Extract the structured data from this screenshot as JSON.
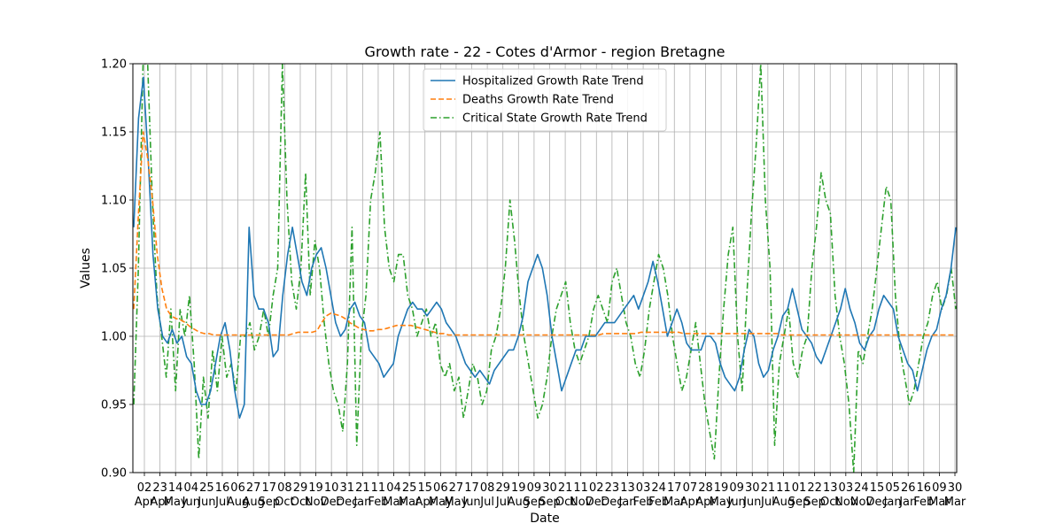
{
  "chart_data": {
    "type": "line",
    "title": "Growth rate - 22 - Cotes d'Armor - region Bretagne",
    "xlabel": "Date",
    "ylabel": "Values",
    "ylim": [
      0.9,
      1.2
    ],
    "yticks": [
      "0.90",
      "0.95",
      "1.00",
      "1.05",
      "1.10",
      "1.15",
      "1.20"
    ],
    "grid": true,
    "legend_position": "upper center",
    "xtick_labels": [
      {
        "day": "02",
        "month": "Apr"
      },
      {
        "day": "23",
        "month": "Apr"
      },
      {
        "day": "14",
        "month": "May"
      },
      {
        "day": "04",
        "month": "Jun"
      },
      {
        "day": "25",
        "month": "Jun"
      },
      {
        "day": "16",
        "month": "Jul"
      },
      {
        "day": "06",
        "month": "Aug"
      },
      {
        "day": "27",
        "month": "Aug"
      },
      {
        "day": "17",
        "month": "Sep"
      },
      {
        "day": "08",
        "month": "Oct"
      },
      {
        "day": "29",
        "month": "Oct"
      },
      {
        "day": "19",
        "month": "Nov"
      },
      {
        "day": "10",
        "month": "Dec"
      },
      {
        "day": "31",
        "month": "Dec"
      },
      {
        "day": "21",
        "month": "Jan"
      },
      {
        "day": "11",
        "month": "Feb"
      },
      {
        "day": "04",
        "month": "Mar"
      },
      {
        "day": "25",
        "month": "Mar"
      },
      {
        "day": "15",
        "month": "Apr"
      },
      {
        "day": "06",
        "month": "May"
      },
      {
        "day": "27",
        "month": "May"
      },
      {
        "day": "17",
        "month": "Jun"
      },
      {
        "day": "08",
        "month": "Jul"
      },
      {
        "day": "29",
        "month": "Jul"
      },
      {
        "day": "19",
        "month": "Aug"
      },
      {
        "day": "09",
        "month": "Sep"
      },
      {
        "day": "30",
        "month": "Sep"
      },
      {
        "day": "21",
        "month": "Oct"
      },
      {
        "day": "11",
        "month": "Nov"
      },
      {
        "day": "02",
        "month": "Dec"
      },
      {
        "day": "23",
        "month": "Dec"
      },
      {
        "day": "13",
        "month": "Jan"
      },
      {
        "day": "03",
        "month": "Feb"
      },
      {
        "day": "24",
        "month": "Feb"
      },
      {
        "day": "17",
        "month": "Mar"
      },
      {
        "day": "07",
        "month": "Apr"
      },
      {
        "day": "28",
        "month": "Apr"
      },
      {
        "day": "19",
        "month": "May"
      },
      {
        "day": "09",
        "month": "Jun"
      },
      {
        "day": "30",
        "month": "Jun"
      },
      {
        "day": "21",
        "month": "Jul"
      },
      {
        "day": "11",
        "month": "Aug"
      },
      {
        "day": "01",
        "month": "Sep"
      },
      {
        "day": "22",
        "month": "Sep"
      },
      {
        "day": "13",
        "month": "Oct"
      },
      {
        "day": "03",
        "month": "Nov"
      },
      {
        "day": "24",
        "month": "Nov"
      },
      {
        "day": "15",
        "month": "Dec"
      },
      {
        "day": "05",
        "month": "Jan"
      },
      {
        "day": "26",
        "month": "Jan"
      },
      {
        "day": "16",
        "month": "Feb"
      },
      {
        "day": "09",
        "month": "Mar"
      },
      {
        "day": "30",
        "month": "Mar"
      }
    ],
    "series": [
      {
        "name": "Hospitalized Growth Rate Trend",
        "color": "#1f77b4",
        "style": "solid",
        "values": [
          1.08,
          1.16,
          1.19,
          1.13,
          1.06,
          1.02,
          1.0,
          0.995,
          1.005,
          0.995,
          1.0,
          0.985,
          0.98,
          0.96,
          0.95,
          0.95,
          0.96,
          0.98,
          1.0,
          1.01,
          0.99,
          0.96,
          0.94,
          0.95,
          1.08,
          1.03,
          1.02,
          1.02,
          1.01,
          0.985,
          0.99,
          1.03,
          1.06,
          1.08,
          1.06,
          1.04,
          1.03,
          1.05,
          1.06,
          1.065,
          1.05,
          1.03,
          1.01,
          1.0,
          1.005,
          1.02,
          1.025,
          1.015,
          1.01,
          0.99,
          0.985,
          0.98,
          0.97,
          0.975,
          0.98,
          1.0,
          1.01,
          1.02,
          1.025,
          1.02,
          1.02,
          1.015,
          1.02,
          1.025,
          1.02,
          1.01,
          1.005,
          1.0,
          0.99,
          0.98,
          0.975,
          0.97,
          0.975,
          0.97,
          0.965,
          0.975,
          0.98,
          0.985,
          0.99,
          0.99,
          1.0,
          1.015,
          1.04,
          1.05,
          1.06,
          1.05,
          1.03,
          1.0,
          0.98,
          0.96,
          0.97,
          0.98,
          0.99,
          0.99,
          1.0,
          1.0,
          1.0,
          1.005,
          1.01,
          1.01,
          1.01,
          1.015,
          1.02,
          1.025,
          1.03,
          1.02,
          1.03,
          1.04,
          1.055,
          1.04,
          1.02,
          1.0,
          1.01,
          1.02,
          1.01,
          0.995,
          0.99,
          0.99,
          0.99,
          1.0,
          1.0,
          0.995,
          0.98,
          0.97,
          0.965,
          0.96,
          0.97,
          0.99,
          1.005,
          1.0,
          0.98,
          0.97,
          0.975,
          0.99,
          1.0,
          1.015,
          1.02,
          1.035,
          1.02,
          1.005,
          1.0,
          0.995,
          0.985,
          0.98,
          0.99,
          1.0,
          1.01,
          1.02,
          1.035,
          1.02,
          1.01,
          0.995,
          0.99,
          1.0,
          1.005,
          1.02,
          1.03,
          1.025,
          1.02,
          1.0,
          0.99,
          0.98,
          0.975,
          0.96,
          0.975,
          0.99,
          1.0,
          1.005,
          1.02,
          1.03,
          1.05,
          1.08
        ]
      },
      {
        "name": "Deaths Growth Rate Trend",
        "color": "#ff7f0e",
        "style": "dashed",
        "values": [
          1.02,
          1.09,
          1.15,
          1.13,
          1.1,
          1.06,
          1.035,
          1.02,
          1.015,
          1.013,
          1.012,
          1.01,
          1.007,
          1.005,
          1.003,
          1.002,
          1.002,
          1.001,
          1.001,
          1.001,
          1.001,
          1.001,
          1.001,
          1.001,
          1.001,
          1.001,
          1.001,
          1.001,
          1.001,
          1.001,
          1.001,
          1.001,
          1.001,
          1.001,
          1.002,
          1.003,
          1.003,
          1.003,
          1.003,
          1.004,
          1.01,
          1.015,
          1.017,
          1.016,
          1.015,
          1.013,
          1.01,
          1.008,
          1.006,
          1.005,
          1.004,
          1.004,
          1.005,
          1.005,
          1.006,
          1.007,
          1.008,
          1.008,
          1.008,
          1.008,
          1.007,
          1.006,
          1.005,
          1.004,
          1.003,
          1.002,
          1.002,
          1.001,
          1.001,
          1.001,
          1.001,
          1.001,
          1.001,
          1.001,
          1.001,
          1.001,
          1.001,
          1.001,
          1.001,
          1.001,
          1.001,
          1.001,
          1.001,
          1.001,
          1.001,
          1.001,
          1.001,
          1.001,
          1.001,
          1.001,
          1.001,
          1.001,
          1.001,
          1.001,
          1.001,
          1.001,
          1.001,
          1.001,
          1.001,
          1.001,
          1.002,
          1.002,
          1.002,
          1.002,
          1.002,
          1.002,
          1.002,
          1.002,
          1.003,
          1.003,
          1.003,
          1.003,
          1.003,
          1.003,
          1.003,
          1.003,
          1.003,
          1.002,
          1.002,
          1.002,
          1.002,
          1.002,
          1.002,
          1.002,
          1.002,
          1.002,
          1.002,
          1.002,
          1.002,
          1.002,
          1.002,
          1.002,
          1.002,
          1.002,
          1.002,
          1.002,
          1.002,
          1.002,
          1.001,
          1.001,
          1.001,
          1.001,
          1.001,
          1.001,
          1.001,
          1.001,
          1.001,
          1.001,
          1.001,
          1.001,
          1.001,
          1.001,
          1.001,
          1.001,
          1.001,
          1.001,
          1.001,
          1.001,
          1.001,
          1.001,
          1.001,
          1.001,
          1.001,
          1.001,
          1.001,
          1.001,
          1.001,
          1.001,
          1.001,
          1.001,
          1.001,
          1.001,
          1.001,
          1.001,
          1.001,
          1.001
        ]
      },
      {
        "name": "Critical State Growth Rate Trend",
        "color": "#2ca02c",
        "style": "dashdot",
        "values": [
          0.95,
          1.05,
          1.2,
          1.2,
          1.1,
          1.03,
          1.0,
          0.97,
          1.02,
          0.96,
          1.02,
          1.0,
          1.03,
          0.98,
          0.91,
          0.97,
          0.94,
          0.99,
          0.96,
          1.0,
          0.97,
          0.98,
          0.96,
          1.0,
          1.0,
          1.01,
          0.99,
          1.0,
          1.02,
          1.0,
          1.03,
          1.05,
          1.2,
          1.1,
          1.04,
          1.02,
          1.05,
          1.12,
          1.03,
          1.07,
          1.05,
          1.01,
          0.98,
          0.96,
          0.95,
          0.93,
          0.98,
          1.08,
          0.92,
          1.0,
          1.03,
          1.1,
          1.12,
          1.15,
          1.08,
          1.05,
          1.04,
          1.06,
          1.06,
          1.03,
          1.02,
          1.0,
          1.01,
          1.02,
          1.0,
          1.01,
          0.98,
          0.97,
          0.98,
          0.96,
          0.97,
          0.94,
          0.96,
          0.98,
          0.97,
          0.95,
          0.96,
          0.99,
          1.0,
          1.02,
          1.05,
          1.1,
          1.07,
          1.03,
          1.0,
          0.98,
          0.96,
          0.94,
          0.95,
          0.97,
          1.0,
          1.02,
          1.03,
          1.04,
          1.01,
          0.99,
          0.98,
          0.99,
          1.0,
          1.02,
          1.03,
          1.02,
          1.01,
          1.04,
          1.05,
          1.03,
          1.01,
          1.0,
          0.98,
          0.97,
          0.99,
          1.02,
          1.04,
          1.06,
          1.05,
          1.03,
          1.0,
          0.98,
          0.96,
          0.97,
          0.99,
          1.01,
          0.98,
          0.95,
          0.93,
          0.91,
          0.97,
          1.02,
          1.06,
          1.08,
          1.0,
          0.96,
          1.03,
          1.09,
          1.14,
          1.2,
          1.1,
          1.05,
          0.92,
          0.98,
          1.0,
          1.02,
          0.98,
          0.97,
          0.99,
          1.0,
          1.05,
          1.08,
          1.12,
          1.1,
          1.09,
          1.03,
          1.0,
          0.98,
          0.95,
          0.9,
          0.99,
          0.98,
          1.0,
          1.02,
          1.05,
          1.08,
          1.11,
          1.1,
          1.03,
          0.99,
          0.97,
          0.95,
          0.96,
          0.98,
          1.0,
          1.01,
          1.03,
          1.04,
          1.02,
          1.03,
          1.05,
          1.02
        ]
      }
    ]
  }
}
